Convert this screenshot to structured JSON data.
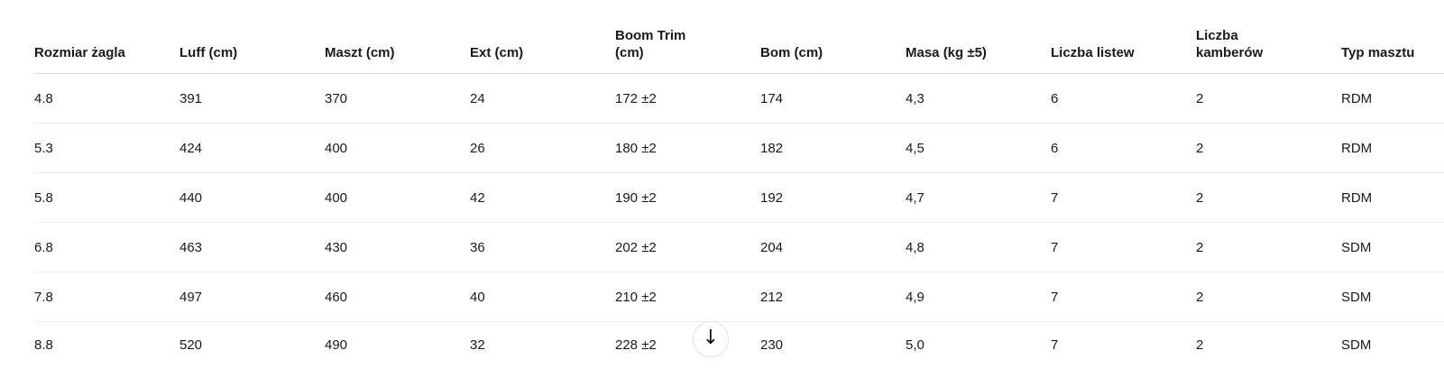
{
  "table": {
    "columns": [
      {
        "label": "Rozmiar żagla"
      },
      {
        "label": "Luff (cm)"
      },
      {
        "label": "Maszt (cm)"
      },
      {
        "label": "Ext (cm)"
      },
      {
        "label": "Boom Trim (cm)"
      },
      {
        "label": "Bom (cm)"
      },
      {
        "label": "Masa (kg ±5)"
      },
      {
        "label": "Liczba listew"
      },
      {
        "label": "Liczba kamberów"
      },
      {
        "label": "Typ masztu"
      }
    ],
    "rows": [
      [
        "4.8",
        "391",
        "370",
        "24",
        "172 ±2",
        "174",
        "4,3",
        "6",
        "2",
        "RDM"
      ],
      [
        "5.3",
        "424",
        "400",
        "26",
        "180 ±2",
        "182",
        "4,5",
        "6",
        "2",
        "RDM"
      ],
      [
        "5.8",
        "440",
        "400",
        "42",
        "190 ±2",
        "192",
        "4,7",
        "7",
        "2",
        "RDM"
      ],
      [
        "6.8",
        "463",
        "430",
        "36",
        "202 ±2",
        "204",
        "4,8",
        "7",
        "2",
        "SDM"
      ],
      [
        "7.8",
        "497",
        "460",
        "40",
        "210 ±2",
        "212",
        "4,9",
        "7",
        "2",
        "SDM"
      ],
      [
        "8.8",
        "520",
        "490",
        "32",
        "228 ±2",
        "230",
        "5,0",
        "7",
        "2",
        "SDM"
      ]
    ]
  },
  "scroll_button": {
    "icon": "↓"
  },
  "colors": {
    "text": "#1a1a1a",
    "header_border": "#d9d9d9",
    "row_border": "#ededed",
    "button_border": "#e4e4e4",
    "background": "#ffffff"
  }
}
